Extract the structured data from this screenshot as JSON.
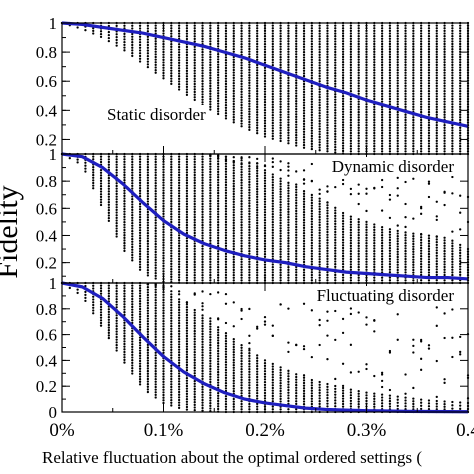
{
  "chart_data": {
    "type": "scatter",
    "ylabel": "Fidelity",
    "xlabel": "Relative fluctuation about the optimal ordered settings (",
    "x_ticks": [
      "0%",
      "0.1%",
      "0.2%",
      "0.3%",
      "0.4"
    ],
    "x_tick_values": [
      0,
      0.1,
      0.2,
      0.3,
      0.4
    ],
    "xlim": [
      0,
      0.4
    ],
    "y_tick_values": [
      0.2,
      0.4,
      0.6,
      0.8,
      1
    ],
    "line_color": "#1f1fbf",
    "point_color": "#000000",
    "panels": [
      {
        "label": "Static disorder",
        "label_position": "middle-left",
        "y_ticks": [
          "0.2",
          "0.4",
          "0.6",
          "0.8",
          "1"
        ],
        "ylim": [
          0.1,
          1.0
        ],
        "series": [
          {
            "type": "line",
            "x": [
              0,
              0.02,
              0.04,
              0.06,
              0.08,
              0.1,
              0.12,
              0.14,
              0.16,
              0.18,
              0.2,
              0.22,
              0.24,
              0.26,
              0.28,
              0.3,
              0.32,
              0.34,
              0.36,
              0.38,
              0.4
            ],
            "values": [
              1.0,
              0.99,
              0.97,
              0.95,
              0.93,
              0.9,
              0.87,
              0.84,
              0.8,
              0.76,
              0.71,
              0.66,
              0.61,
              0.56,
              0.52,
              0.47,
              0.43,
              0.39,
              0.35,
              0.32,
              0.29
            ]
          },
          {
            "type": "scatter",
            "x": [
              0,
              0.02,
              0.04,
              0.06,
              0.08,
              0.1,
              0.12,
              0.14,
              0.16,
              0.18,
              0.2,
              0.22,
              0.24,
              0.26,
              0.28,
              0.3,
              0.32,
              0.34,
              0.36,
              0.38,
              0.4
            ],
            "min": [
              1.0,
              0.96,
              0.9,
              0.82,
              0.72,
              0.62,
              0.52,
              0.43,
              0.35,
              0.28,
              0.22,
              0.18,
              0.14,
              0.12,
              0.1,
              0.1,
              0.1,
              0.1,
              0.1,
              0.1,
              0.1
            ],
            "max": [
              1.0,
              1.0,
              1.0,
              1.0,
              1.0,
              1.0,
              1.0,
              1.0,
              1.0,
              1.0,
              1.0,
              1.0,
              1.0,
              1.0,
              1.0,
              1.0,
              1.0,
              1.0,
              1.0,
              1.0,
              1.0
            ]
          }
        ]
      },
      {
        "label": "Dynamic disorder",
        "label_position": "top-right",
        "y_ticks": [
          "0.2",
          "0.4",
          "0.6",
          "0.8",
          "1"
        ],
        "ylim": [
          0.05,
          1.0
        ],
        "series": [
          {
            "type": "line",
            "x": [
              0,
              0.02,
              0.04,
              0.06,
              0.08,
              0.1,
              0.12,
              0.14,
              0.16,
              0.18,
              0.2,
              0.22,
              0.24,
              0.26,
              0.28,
              0.3,
              0.32,
              0.34,
              0.36,
              0.38,
              0.4
            ],
            "values": [
              1.0,
              0.98,
              0.9,
              0.78,
              0.64,
              0.51,
              0.41,
              0.34,
              0.29,
              0.25,
              0.22,
              0.2,
              0.17,
              0.15,
              0.13,
              0.12,
              0.11,
              0.1,
              0.09,
              0.09,
              0.08
            ]
          },
          {
            "type": "scatter",
            "x": [
              0,
              0.02,
              0.04,
              0.06,
              0.08,
              0.1,
              0.12,
              0.14,
              0.16,
              0.18,
              0.2,
              0.22,
              0.24,
              0.26,
              0.28,
              0.3,
              0.32,
              0.34,
              0.36,
              0.38,
              0.4
            ],
            "min": [
              1.0,
              0.92,
              0.6,
              0.3,
              0.12,
              0.06,
              0.05,
              0.05,
              0.05,
              0.05,
              0.05,
              0.05,
              0.05,
              0.05,
              0.05,
              0.05,
              0.05,
              0.05,
              0.05,
              0.05,
              0.05
            ],
            "max": [
              1.0,
              1.0,
              1.0,
              1.0,
              1.0,
              1.0,
              1.0,
              1.0,
              0.95,
              0.92,
              0.88,
              0.8,
              0.72,
              0.65,
              0.55,
              0.5,
              0.45,
              0.42,
              0.4,
              0.38,
              0.3
            ]
          }
        ]
      },
      {
        "label": "Fluctuating disorder",
        "label_position": "top-right",
        "y_ticks": [
          "0",
          "0.2",
          "0.4",
          "0.6",
          "0.8",
          "1"
        ],
        "ylim": [
          0,
          1.0
        ],
        "series": [
          {
            "type": "line",
            "x": [
              0,
              0.02,
              0.04,
              0.06,
              0.08,
              0.1,
              0.12,
              0.14,
              0.16,
              0.18,
              0.2,
              0.22,
              0.24,
              0.26,
              0.28,
              0.3,
              0.32,
              0.34,
              0.36,
              0.38,
              0.4
            ],
            "values": [
              1.0,
              0.97,
              0.88,
              0.74,
              0.58,
              0.43,
              0.31,
              0.22,
              0.15,
              0.1,
              0.07,
              0.05,
              0.03,
              0.02,
              0.015,
              0.01,
              0.008,
              0.005,
              0.004,
              0.003,
              0.002
            ]
          },
          {
            "type": "scatter",
            "x": [
              0,
              0.02,
              0.04,
              0.06,
              0.08,
              0.1,
              0.12,
              0.14,
              0.16,
              0.18,
              0.2,
              0.22,
              0.24,
              0.26,
              0.28,
              0.3,
              0.32,
              0.34,
              0.36,
              0.38,
              0.4
            ],
            "min": [
              1.0,
              0.9,
              0.65,
              0.4,
              0.18,
              0.07,
              0.02,
              0.01,
              0.0,
              0.0,
              0.0,
              0.0,
              0.0,
              0.0,
              0.0,
              0.0,
              0.0,
              0.0,
              0.0,
              0.0,
              0.0
            ],
            "max": [
              1.0,
              1.0,
              1.0,
              1.0,
              1.0,
              0.95,
              0.85,
              0.74,
              0.62,
              0.5,
              0.4,
              0.33,
              0.26,
              0.22,
              0.18,
              0.15,
              0.13,
              0.11,
              0.09,
              0.08,
              0.07
            ]
          }
        ]
      }
    ]
  }
}
